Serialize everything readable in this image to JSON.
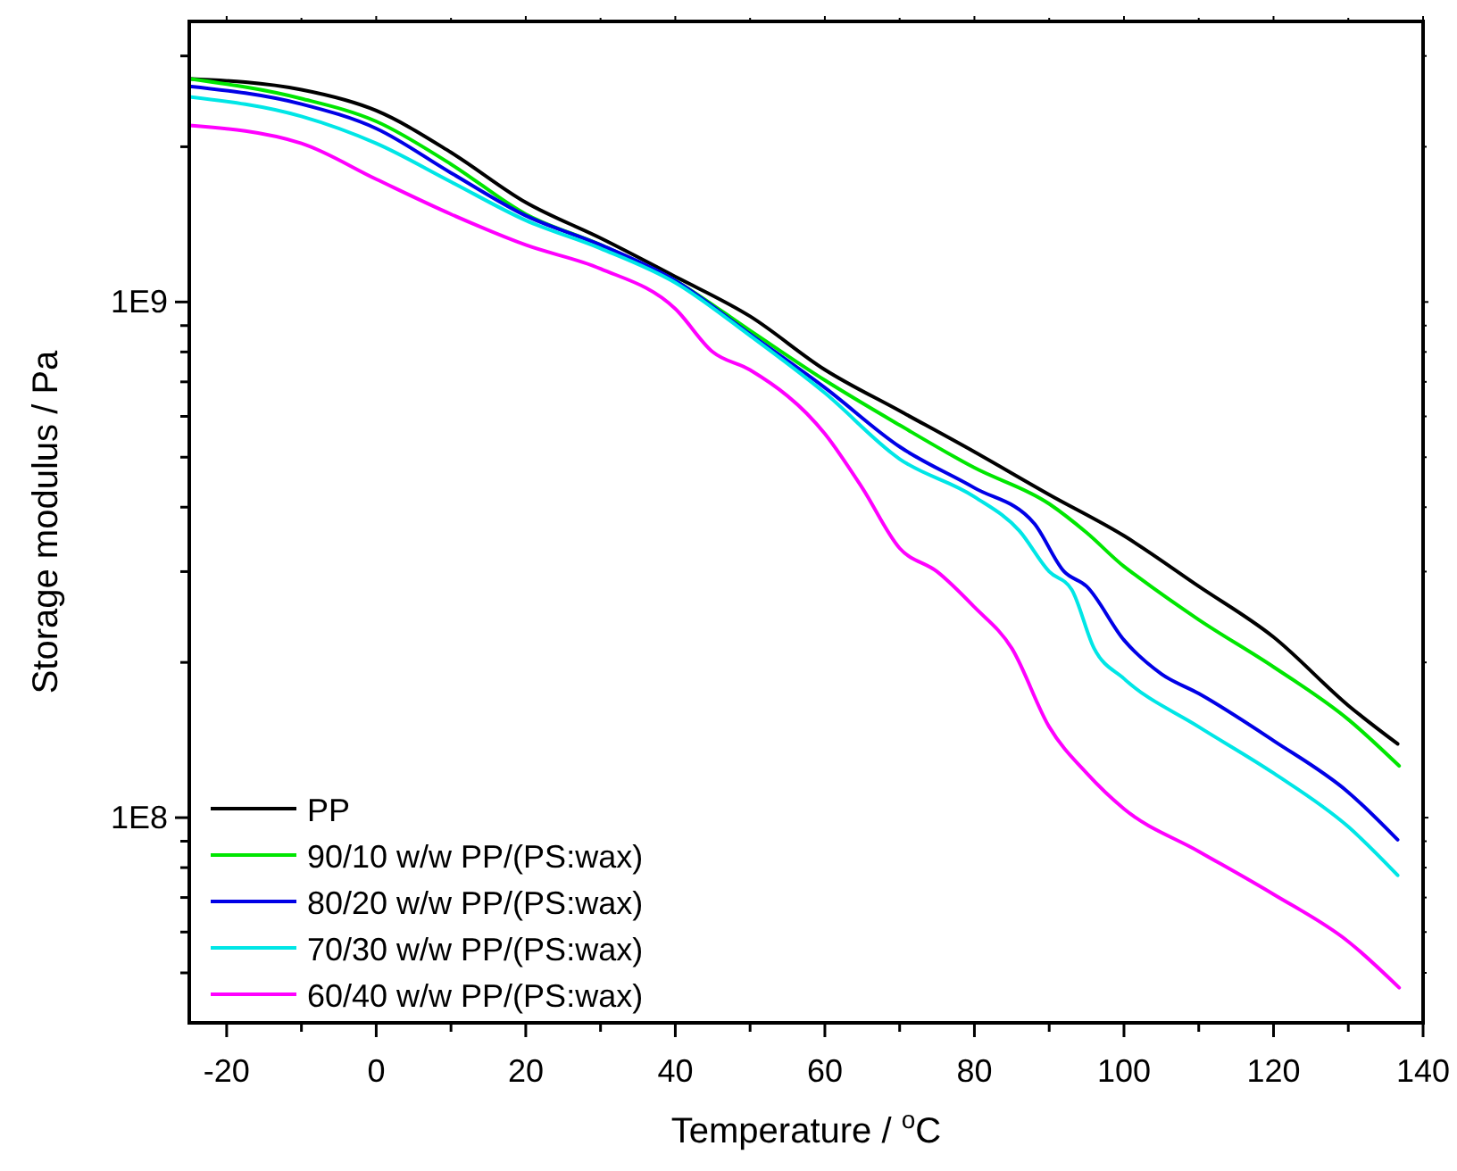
{
  "chart_data": {
    "type": "line",
    "xlabel": "Temperature / $^{o}$C",
    "ylabel": "Storage modulus / Pa",
    "log": "y",
    "legend": "bottom left",
    "grid": false,
    "line_style": "solid",
    "xlim": [
      -25,
      140
    ],
    "xticks": [
      -20,
      {
        "value": -10,
        "label": null
      },
      0,
      {
        "value": 10,
        "label": null
      },
      20,
      {
        "value": 30,
        "label": null
      },
      40,
      {
        "value": 50,
        "label": null
      },
      60,
      {
        "value": 70,
        "label": null
      },
      80,
      {
        "value": 90,
        "label": null
      },
      100,
      {
        "value": 110,
        "label": null
      },
      120,
      {
        "value": 130,
        "label": null
      },
      140
    ],
    "ylim": [
      40000000,
      3500000000
    ],
    "yticks": [
      {
        "value": 50000000,
        "label": null
      },
      {
        "value": 60000000,
        "label": null
      },
      {
        "value": 70000000,
        "label": null
      },
      {
        "value": 80000000,
        "label": null
      },
      {
        "value": 90000000,
        "label": null
      },
      {
        "value": 100000000,
        "label": "1E8"
      },
      {
        "value": 200000000,
        "label": null
      },
      {
        "value": 300000000,
        "label": null
      },
      {
        "value": 400000000,
        "label": null
      },
      {
        "value": 500000000,
        "label": null
      },
      {
        "value": 600000000,
        "label": null
      },
      {
        "value": 700000000,
        "label": null
      },
      {
        "value": 800000000,
        "label": null
      },
      {
        "value": 900000000,
        "label": null
      },
      {
        "value": 1000000000,
        "label": "1E9"
      },
      {
        "value": 2000000000,
        "label": null
      },
      {
        "value": 3000000000,
        "label": null
      }
    ],
    "series": [
      {
        "name": "PP",
        "color": "#000000",
        "x": [
          -25,
          -10,
          0,
          10,
          20,
          30,
          40,
          50,
          60,
          70,
          80,
          90,
          100,
          110,
          120,
          130,
          136.6
        ],
        "values": [
          2710000000,
          2580000000,
          2350000000,
          1950000000,
          1560000000,
          1330000000,
          1120000000,
          938000000,
          739000000,
          615000000,
          512000000,
          423000000,
          352000000,
          281000000,
          224000000,
          165000000,
          139000000
        ]
      },
      {
        "name": "90/10 w/w PP/(PS:wax)",
        "color": "#00e600",
        "x": [
          -25,
          -10,
          0,
          10,
          20,
          30,
          40,
          50,
          60,
          70,
          80,
          90,
          95,
          100,
          102,
          110,
          120,
          130,
          136.8
        ],
        "values": [
          2710000000,
          2480000000,
          2240000000,
          1850000000,
          1480000000,
          1290000000,
          1100000000,
          880000000,
          705000000,
          577000000,
          477000000,
          406000000,
          357000000,
          307000000,
          292000000,
          242000000,
          196000000,
          155000000,
          126000000
        ]
      },
      {
        "name": "80/20 w/w PP/(PS:wax)",
        "color": "#0000e6",
        "x": [
          -25,
          -10,
          0,
          10,
          20,
          30,
          40,
          50,
          60,
          70,
          80,
          88,
          92,
          95,
          100,
          105,
          110,
          120,
          130,
          136.6
        ],
        "values": [
          2620000000,
          2420000000,
          2170000000,
          1780000000,
          1470000000,
          1290000000,
          1100000000,
          866000000,
          682000000,
          524000000,
          436000000,
          372000000,
          300000000,
          281000000,
          221000000,
          190000000,
          174000000,
          141000000,
          112000000,
          90600000
        ]
      },
      {
        "name": "70/30 w/w PP/(PS:wax)",
        "color": "#00e6e6",
        "x": [
          -25,
          -10,
          0,
          10,
          20,
          30,
          40,
          50,
          60,
          70,
          80,
          86,
          90,
          93,
          96,
          100,
          110,
          120,
          130,
          136.6
        ],
        "values": [
          2500000000,
          2290000000,
          2030000000,
          1710000000,
          1440000000,
          1270000000,
          1090000000,
          860000000,
          666000000,
          496000000,
          419000000,
          360000000,
          300000000,
          277000000,
          213000000,
          186000000,
          150000000,
          122000000,
          96000000,
          77300000
        ]
      },
      {
        "name": "60/40 w/w PP/(PS:wax)",
        "color": "#ff00ff",
        "x": [
          -25,
          -10,
          0,
          10,
          20,
          30,
          40,
          45,
          50,
          60,
          65,
          70,
          75,
          80,
          85,
          90,
          95,
          100,
          110,
          120,
          130,
          136.8
        ],
        "values": [
          2200000000,
          2030000000,
          1730000000,
          1480000000,
          1290000000,
          1160000000,
          970000000,
          800000000,
          738000000,
          555000000,
          436000000,
          333000000,
          300000000,
          256000000,
          213000000,
          150000000,
          122000000,
          104000000,
          86000000,
          71000000,
          57500000,
          46800000
        ]
      }
    ]
  }
}
